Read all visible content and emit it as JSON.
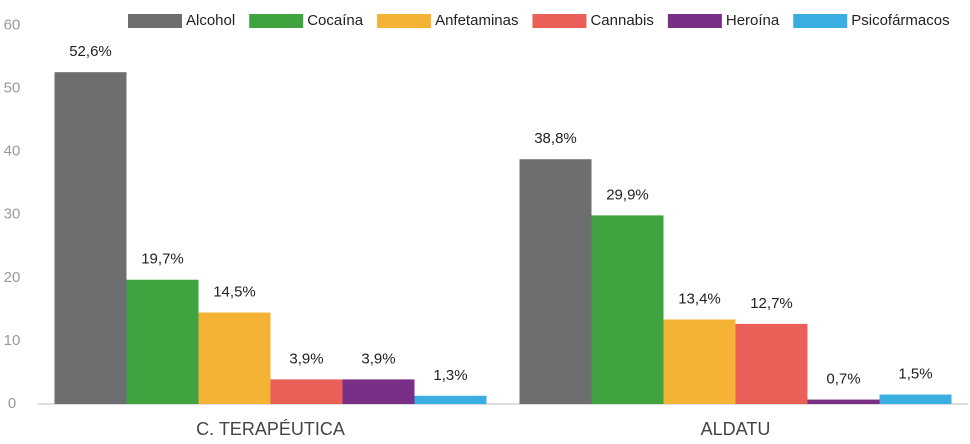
{
  "chart_data": {
    "type": "bar",
    "categories": [
      "C. TERAPÉUTICA",
      "ALDATU"
    ],
    "series": [
      {
        "name": "Alcohol",
        "color": "#6d6e70",
        "values": [
          52.6,
          38.8
        ],
        "value_labels": [
          "52,6%",
          "38,8%"
        ]
      },
      {
        "name": "Cocaína",
        "color": "#3fa33f",
        "values": [
          19.7,
          29.9
        ],
        "value_labels": [
          "19,7%",
          "29,9%"
        ]
      },
      {
        "name": "Anfetaminas",
        "color": "#f5b335",
        "values": [
          14.5,
          13.4
        ],
        "value_labels": [
          "14,5%",
          "13,4%"
        ]
      },
      {
        "name": "Cannabis",
        "color": "#ea5f57",
        "values": [
          3.9,
          12.7
        ],
        "value_labels": [
          "3,9%",
          "12,7%"
        ]
      },
      {
        "name": "Heroína",
        "color": "#7a2f86",
        "values": [
          3.9,
          0.7
        ],
        "value_labels": [
          "3,9%",
          "0,7%"
        ]
      },
      {
        "name": "Psicofármacos",
        "color": "#3aaee0",
        "values": [
          1.3,
          1.5
        ],
        "value_labels": [
          "1,3%",
          "1,5%"
        ]
      }
    ],
    "ylim": [
      0,
      60
    ],
    "yticks": [
      0,
      10,
      20,
      30,
      40,
      50,
      60
    ],
    "legend": "top"
  }
}
